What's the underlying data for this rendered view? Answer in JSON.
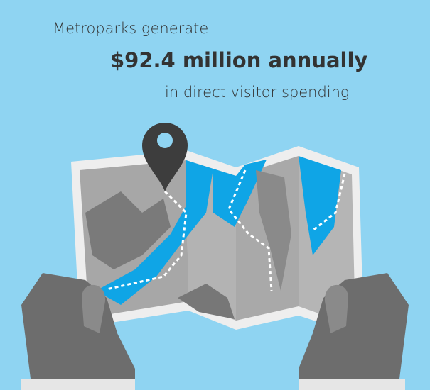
{
  "header": {
    "line1": "Metroparks generate",
    "line2": "$92.4 million annually",
    "line3": "in direct visitor spending"
  }
}
